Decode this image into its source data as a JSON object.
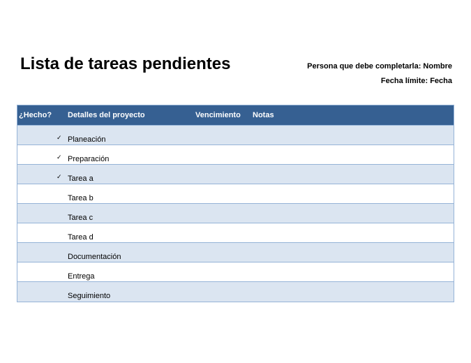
{
  "document": {
    "title": "Lista de tareas pendientes",
    "owner_line": "Persona que debe completarla: Nombre",
    "due_line": "Fecha límite: Fecha"
  },
  "table": {
    "headers": {
      "done": "¿Hecho?",
      "details": "Detalles del proyecto",
      "due": "Vencimiento",
      "notes": "Notas"
    },
    "check_glyph": "✓",
    "rows": [
      {
        "name": "Planeación",
        "done": true
      },
      {
        "name": "Preparación",
        "done": true
      },
      {
        "name": "Tarea a",
        "done": true
      },
      {
        "name": "Tarea b",
        "done": false
      },
      {
        "name": "Tarea c",
        "done": false
      },
      {
        "name": "Tarea d",
        "done": false
      },
      {
        "name": "Documentación",
        "done": false
      },
      {
        "name": "Entrega",
        "done": false
      },
      {
        "name": "Seguimiento",
        "done": false
      }
    ]
  },
  "colors": {
    "header_bg": "#366092",
    "header_text": "#ffffff",
    "row_shaded": "#dbe5f1",
    "row_plain": "#ffffff",
    "border": "#95b3d7"
  }
}
